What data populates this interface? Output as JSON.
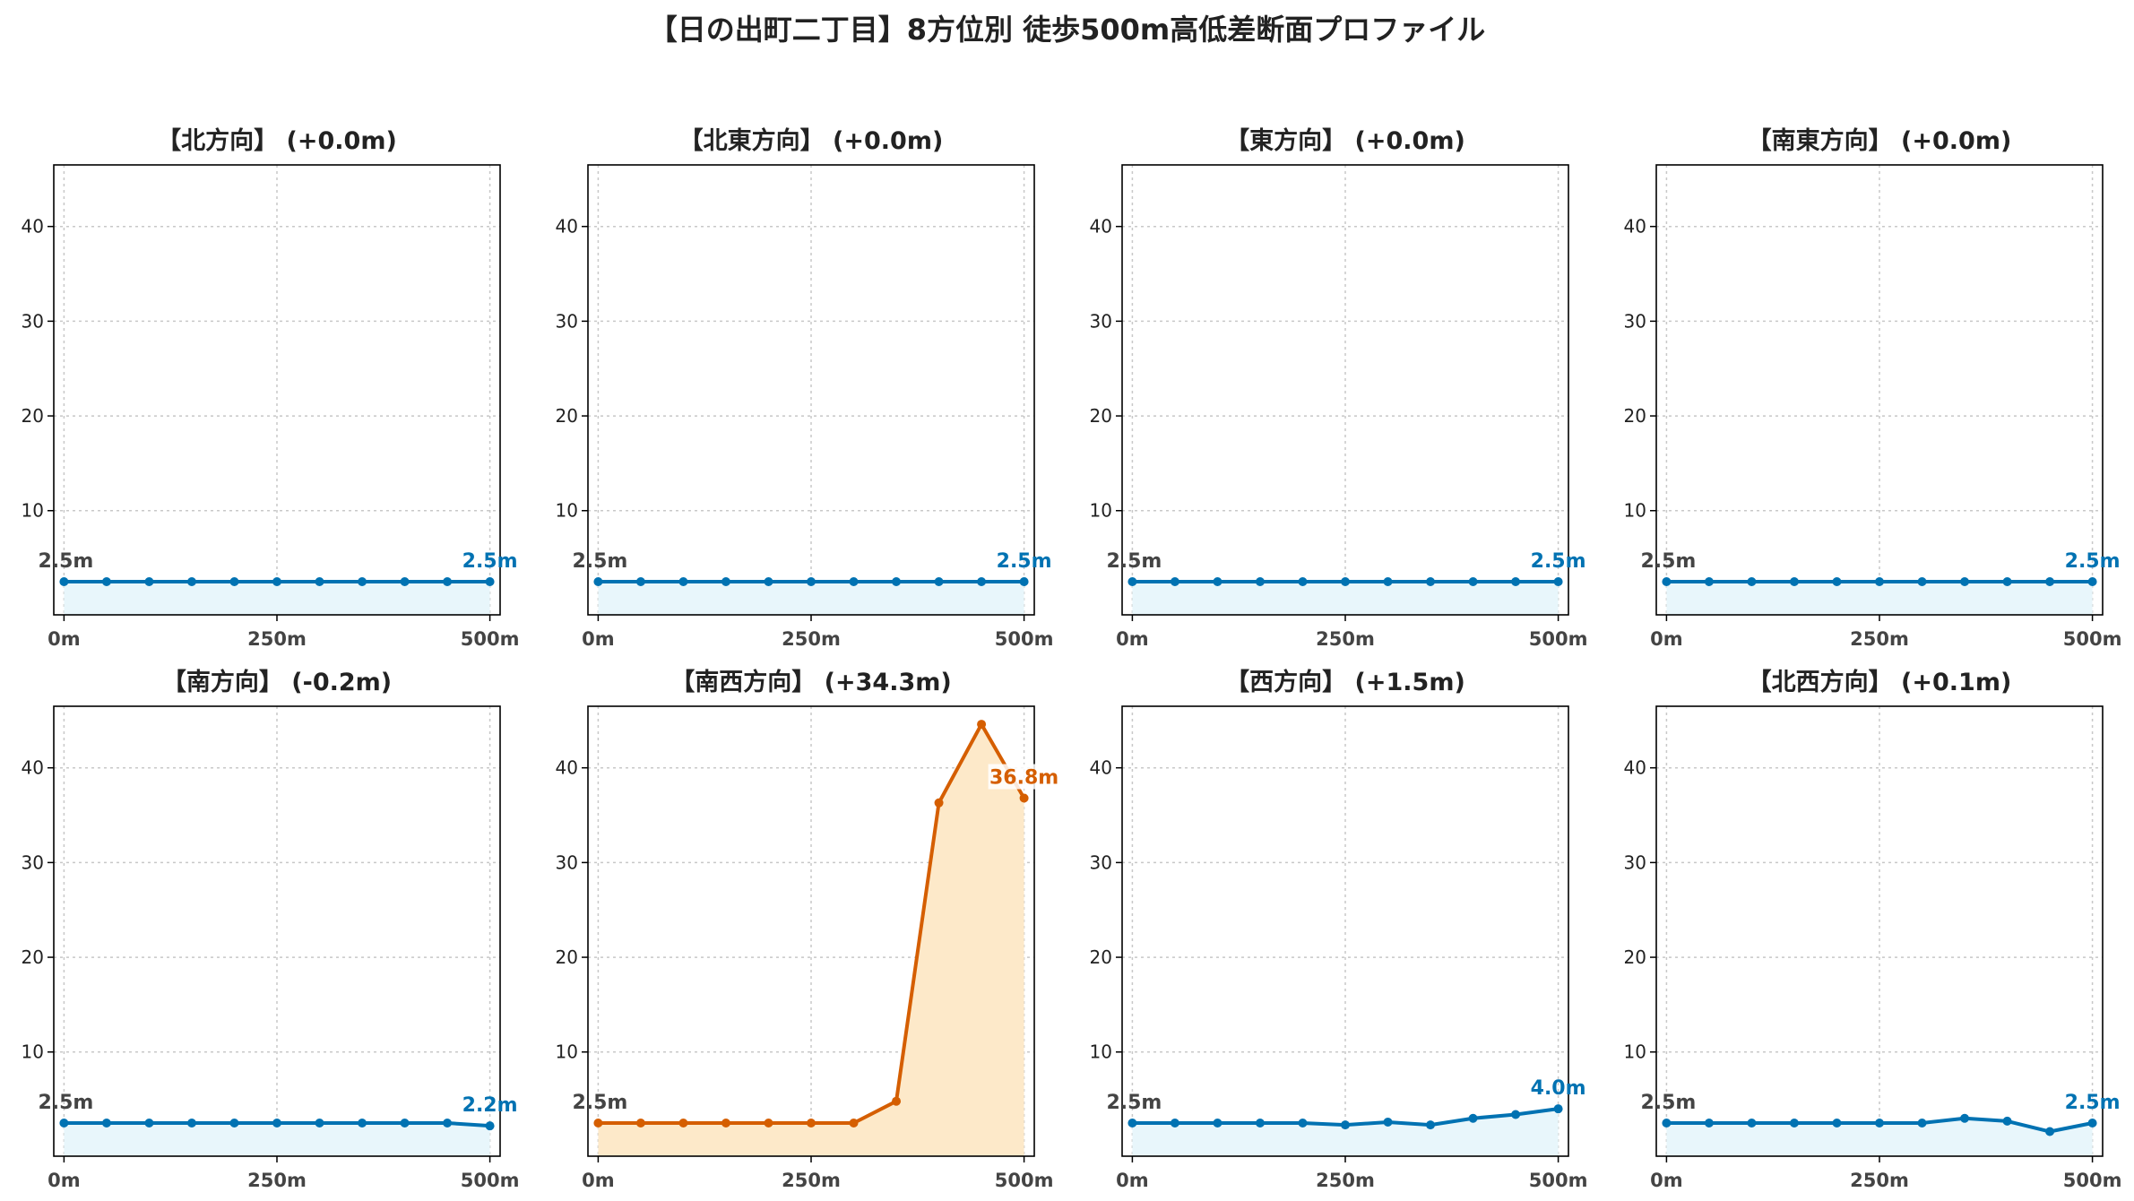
{
  "title": "【日の出町二丁目】8方位別 徒歩500m高低差断面プロファイル",
  "colors": {
    "flat_line": "#0072B2",
    "flat_fill": "#e8f6fb",
    "steep_line": "#D55E00",
    "steep_fill": "#fde9c9",
    "grid": "#c8c8c8",
    "start_label": "#444444"
  },
  "chart_data": [
    {
      "type": "line",
      "title": "【北方向】 (+0.0m)",
      "style": "flat",
      "x": [
        0,
        50,
        100,
        150,
        200,
        250,
        300,
        350,
        400,
        450,
        500
      ],
      "y": [
        2.5,
        2.5,
        2.5,
        2.5,
        2.5,
        2.5,
        2.5,
        2.5,
        2.5,
        2.5,
        2.5
      ],
      "start_label": "2.5m",
      "end_label": "2.5m",
      "xticks": [
        "0m",
        "250m",
        "500m"
      ],
      "yticks": [
        "10",
        "20",
        "30",
        "40"
      ],
      "ylim": [
        -1,
        46.5
      ],
      "grid": true
    },
    {
      "type": "line",
      "title": "【北東方向】 (+0.0m)",
      "style": "flat",
      "x": [
        0,
        50,
        100,
        150,
        200,
        250,
        300,
        350,
        400,
        450,
        500
      ],
      "y": [
        2.5,
        2.5,
        2.5,
        2.5,
        2.5,
        2.5,
        2.5,
        2.5,
        2.5,
        2.5,
        2.5
      ],
      "start_label": "2.5m",
      "end_label": "2.5m",
      "xticks": [
        "0m",
        "250m",
        "500m"
      ],
      "yticks": [
        "10",
        "20",
        "30",
        "40"
      ],
      "ylim": [
        -1,
        46.5
      ],
      "grid": true
    },
    {
      "type": "line",
      "title": "【東方向】 (+0.0m)",
      "style": "flat",
      "x": [
        0,
        50,
        100,
        150,
        200,
        250,
        300,
        350,
        400,
        450,
        500
      ],
      "y": [
        2.5,
        2.5,
        2.5,
        2.5,
        2.5,
        2.5,
        2.5,
        2.5,
        2.5,
        2.5,
        2.5
      ],
      "start_label": "2.5m",
      "end_label": "2.5m",
      "xticks": [
        "0m",
        "250m",
        "500m"
      ],
      "yticks": [
        "10",
        "20",
        "30",
        "40"
      ],
      "ylim": [
        -1,
        46.5
      ],
      "grid": true
    },
    {
      "type": "line",
      "title": "【南東方向】 (+0.0m)",
      "style": "flat",
      "x": [
        0,
        50,
        100,
        150,
        200,
        250,
        300,
        350,
        400,
        450,
        500
      ],
      "y": [
        2.5,
        2.5,
        2.5,
        2.5,
        2.5,
        2.5,
        2.5,
        2.5,
        2.5,
        2.5,
        2.5
      ],
      "start_label": "2.5m",
      "end_label": "2.5m",
      "xticks": [
        "0m",
        "250m",
        "500m"
      ],
      "yticks": [
        "10",
        "20",
        "30",
        "40"
      ],
      "ylim": [
        -1,
        46.5
      ],
      "grid": true
    },
    {
      "type": "line",
      "title": "【南方向】 (-0.2m)",
      "style": "flat",
      "x": [
        0,
        50,
        100,
        150,
        200,
        250,
        300,
        350,
        400,
        450,
        500
      ],
      "y": [
        2.5,
        2.5,
        2.5,
        2.5,
        2.5,
        2.5,
        2.5,
        2.5,
        2.5,
        2.5,
        2.2
      ],
      "start_label": "2.5m",
      "end_label": "2.2m",
      "xticks": [
        "0m",
        "250m",
        "500m"
      ],
      "yticks": [
        "10",
        "20",
        "30",
        "40"
      ],
      "ylim": [
        -1,
        46.5
      ],
      "grid": true
    },
    {
      "type": "line",
      "title": "【南西方向】 (+34.3m)",
      "style": "steep",
      "x": [
        0,
        50,
        100,
        150,
        200,
        250,
        300,
        350,
        400,
        450,
        500
      ],
      "y": [
        2.5,
        2.5,
        2.5,
        2.5,
        2.5,
        2.5,
        2.5,
        4.8,
        36.3,
        44.6,
        36.8
      ],
      "start_label": "2.5m",
      "end_label": "36.8m",
      "xticks": [
        "0m",
        "250m",
        "500m"
      ],
      "yticks": [
        "10",
        "20",
        "30",
        "40"
      ],
      "ylim": [
        -1,
        46.5
      ],
      "grid": true
    },
    {
      "type": "line",
      "title": "【西方向】 (+1.5m)",
      "style": "flat",
      "x": [
        0,
        50,
        100,
        150,
        200,
        250,
        300,
        350,
        400,
        450,
        500
      ],
      "y": [
        2.5,
        2.5,
        2.5,
        2.5,
        2.5,
        2.3,
        2.6,
        2.3,
        3.0,
        3.4,
        4.0
      ],
      "start_label": "2.5m",
      "end_label": "4.0m",
      "xticks": [
        "0m",
        "250m",
        "500m"
      ],
      "yticks": [
        "10",
        "20",
        "30",
        "40"
      ],
      "ylim": [
        -1,
        46.5
      ],
      "grid": true
    },
    {
      "type": "line",
      "title": "【北西方向】 (+0.1m)",
      "style": "flat",
      "x": [
        0,
        50,
        100,
        150,
        200,
        250,
        300,
        350,
        400,
        450,
        500
      ],
      "y": [
        2.5,
        2.5,
        2.5,
        2.5,
        2.5,
        2.5,
        2.5,
        3.0,
        2.7,
        1.6,
        2.5
      ],
      "start_label": "2.5m",
      "end_label": "2.5m",
      "xticks": [
        "0m",
        "250m",
        "500m"
      ],
      "yticks": [
        "10",
        "20",
        "30",
        "40"
      ],
      "ylim": [
        -1,
        46.5
      ],
      "grid": true
    }
  ]
}
